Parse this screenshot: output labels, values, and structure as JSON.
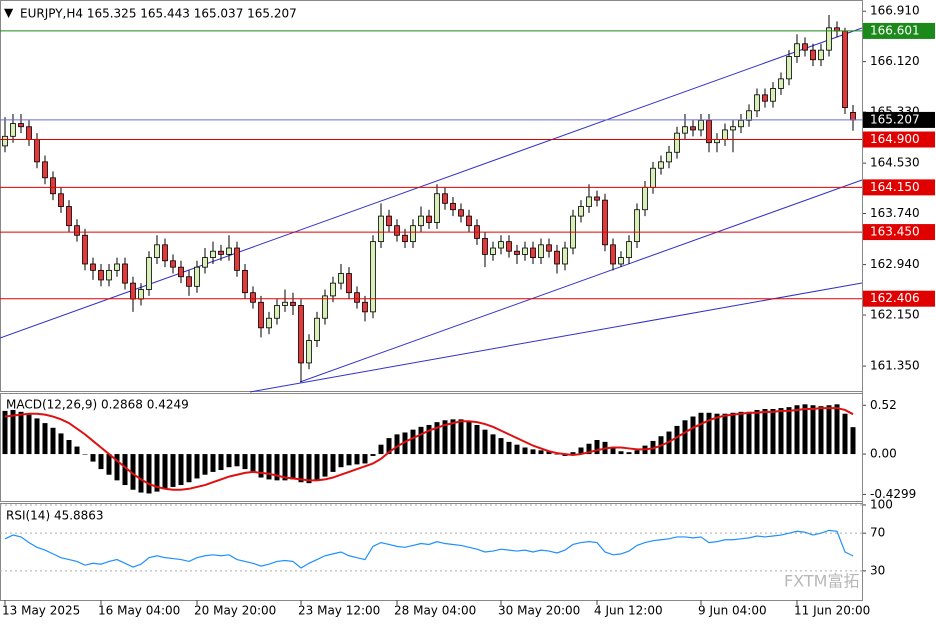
{
  "watermark": "FXTM富拓",
  "chart_data": [
    {
      "type": "candlestick",
      "title": "EURJPY,H4 165.325 165.443 165.037 165.207",
      "bull_color": "#d8efb8",
      "bear_color": "#e23a3a",
      "ylim": [
        160.96,
        167.07
      ],
      "yticks": [
        {
          "value": 166.91,
          "label": "166.910"
        },
        {
          "value": 166.12,
          "label": "166.120"
        },
        {
          "value": 165.33,
          "label": "165.330"
        },
        {
          "value": 164.53,
          "label": "164.530"
        },
        {
          "value": 163.74,
          "label": "163.740"
        },
        {
          "value": 162.94,
          "label": "162.940"
        },
        {
          "value": 162.15,
          "label": "162.150"
        },
        {
          "value": 161.35,
          "label": "161.350"
        }
      ],
      "xticks": [
        {
          "value": 0,
          "label": "13 May 2025"
        },
        {
          "value": 12,
          "label": "16 May 04:00"
        },
        {
          "value": 24,
          "label": "20 May 20:00"
        },
        {
          "value": 37,
          "label": "23 May 12:00"
        },
        {
          "value": 49,
          "label": "28 May 04:00"
        },
        {
          "value": 62,
          "label": "30 May 20:00"
        },
        {
          "value": 74,
          "label": "4 Jun 12:00"
        },
        {
          "value": 87,
          "label": "9 Jun 04:00"
        },
        {
          "value": 99,
          "label": "11 Jun 20:00"
        }
      ],
      "levels": [
        {
          "value": 166.601,
          "color": "#1b8a1b",
          "box_color": "#1b8a1b"
        },
        {
          "value": 165.207,
          "color": "#6a6ad8",
          "box_color": "#000000"
        },
        {
          "value": 164.9,
          "label": "164.900",
          "color": "#e00000",
          "box_color": "#e00000"
        },
        {
          "value": 164.15,
          "label": "164.150",
          "color": "#e00000",
          "box_color": "#e00000"
        },
        {
          "value": 163.45,
          "label": "163.450",
          "color": "#e00000",
          "box_color": "#e00000"
        },
        {
          "value": 162.406,
          "color": "#e00000",
          "box_color": "#e00000"
        }
      ],
      "ohlc": [
        [
          164.8,
          165.25,
          164.7,
          164.95
        ],
        [
          164.95,
          165.3,
          164.85,
          165.15
        ],
        [
          165.15,
          165.3,
          165.0,
          165.1
        ],
        [
          165.1,
          165.2,
          164.8,
          164.9
        ],
        [
          164.9,
          165.0,
          164.45,
          164.55
        ],
        [
          164.55,
          164.65,
          164.2,
          164.3
        ],
        [
          164.3,
          164.4,
          163.95,
          164.05
        ],
        [
          164.05,
          164.15,
          163.75,
          163.85
        ],
        [
          163.85,
          163.95,
          163.45,
          163.55
        ],
        [
          163.55,
          163.65,
          163.3,
          163.4
        ],
        [
          163.4,
          163.5,
          162.85,
          162.95
        ],
        [
          162.95,
          163.05,
          162.7,
          162.85
        ],
        [
          162.85,
          162.95,
          162.6,
          162.7
        ],
        [
          162.7,
          162.95,
          162.6,
          162.85
        ],
        [
          162.85,
          163.05,
          162.75,
          162.95
        ],
        [
          162.95,
          163.05,
          162.55,
          162.65
        ],
        [
          162.65,
          162.75,
          162.2,
          162.4
        ],
        [
          162.4,
          162.65,
          162.3,
          162.55
        ],
        [
          162.55,
          163.15,
          162.45,
          163.05
        ],
        [
          163.05,
          163.4,
          162.95,
          163.25
        ],
        [
          163.25,
          163.35,
          162.9,
          163.0
        ],
        [
          163.0,
          163.1,
          162.8,
          162.9
        ],
        [
          162.9,
          163.0,
          162.65,
          162.75
        ],
        [
          162.75,
          162.85,
          162.45,
          162.6
        ],
        [
          162.6,
          163.0,
          162.5,
          162.9
        ],
        [
          162.9,
          163.2,
          162.8,
          163.05
        ],
        [
          163.05,
          163.3,
          162.95,
          163.15
        ],
        [
          163.15,
          163.25,
          163.0,
          163.1
        ],
        [
          163.1,
          163.4,
          163.0,
          163.2
        ],
        [
          163.2,
          163.3,
          162.75,
          162.85
        ],
        [
          162.85,
          162.95,
          162.4,
          162.5
        ],
        [
          162.5,
          162.6,
          162.25,
          162.35
        ],
        [
          162.35,
          162.45,
          161.8,
          161.95
        ],
        [
          161.95,
          162.2,
          161.85,
          162.1
        ],
        [
          162.1,
          162.4,
          162.0,
          162.3
        ],
        [
          162.3,
          162.55,
          162.2,
          162.35
        ],
        [
          162.35,
          162.5,
          162.15,
          162.3
        ],
        [
          162.3,
          162.4,
          161.1,
          161.4
        ],
        [
          161.4,
          161.85,
          161.3,
          161.75
        ],
        [
          161.75,
          162.2,
          161.65,
          162.1
        ],
        [
          162.1,
          162.55,
          162.0,
          162.45
        ],
        [
          162.45,
          162.75,
          162.35,
          162.65
        ],
        [
          162.65,
          162.95,
          162.55,
          162.8
        ],
        [
          162.8,
          162.9,
          162.4,
          162.5
        ],
        [
          162.5,
          162.6,
          162.25,
          162.35
        ],
        [
          162.35,
          162.45,
          162.05,
          162.2
        ],
        [
          162.2,
          163.4,
          162.1,
          163.3
        ],
        [
          163.3,
          163.9,
          163.2,
          163.7
        ],
        [
          163.7,
          163.8,
          163.45,
          163.55
        ],
        [
          163.55,
          163.65,
          163.3,
          163.4
        ],
        [
          163.4,
          163.5,
          163.2,
          163.3
        ],
        [
          163.3,
          163.65,
          163.2,
          163.55
        ],
        [
          163.55,
          163.85,
          163.45,
          163.7
        ],
        [
          163.7,
          163.8,
          163.5,
          163.6
        ],
        [
          163.6,
          164.2,
          163.5,
          164.05
        ],
        [
          164.05,
          164.15,
          163.8,
          163.9
        ],
        [
          163.9,
          164.0,
          163.7,
          163.8
        ],
        [
          163.8,
          163.9,
          163.6,
          163.7
        ],
        [
          163.7,
          163.8,
          163.45,
          163.55
        ],
        [
          163.55,
          163.65,
          163.25,
          163.35
        ],
        [
          163.35,
          163.45,
          162.9,
          163.1
        ],
        [
          163.1,
          163.3,
          163.0,
          163.2
        ],
        [
          163.2,
          163.4,
          163.1,
          163.3
        ],
        [
          163.3,
          163.4,
          163.05,
          163.15
        ],
        [
          163.15,
          163.25,
          162.95,
          163.1
        ],
        [
          163.1,
          163.3,
          163.0,
          163.2
        ],
        [
          163.2,
          163.3,
          162.95,
          163.05
        ],
        [
          163.05,
          163.35,
          162.95,
          163.25
        ],
        [
          163.25,
          163.35,
          163.05,
          163.15
        ],
        [
          163.15,
          163.25,
          162.8,
          162.95
        ],
        [
          162.95,
          163.3,
          162.85,
          163.2
        ],
        [
          163.2,
          163.8,
          163.1,
          163.7
        ],
        [
          163.7,
          163.95,
          163.6,
          163.85
        ],
        [
          163.85,
          164.2,
          163.75,
          164.0
        ],
        [
          164.0,
          164.1,
          163.85,
          163.95
        ],
        [
          163.95,
          164.05,
          163.15,
          163.25
        ],
        [
          163.25,
          163.35,
          162.85,
          162.95
        ],
        [
          162.95,
          163.15,
          162.9,
          163.05
        ],
        [
          163.05,
          163.4,
          162.95,
          163.3
        ],
        [
          163.3,
          163.9,
          163.2,
          163.8
        ],
        [
          163.8,
          164.25,
          163.7,
          164.15
        ],
        [
          164.15,
          164.55,
          164.05,
          164.45
        ],
        [
          164.45,
          164.65,
          164.35,
          164.55
        ],
        [
          164.55,
          164.8,
          164.45,
          164.7
        ],
        [
          164.7,
          165.1,
          164.6,
          165.0
        ],
        [
          165.0,
          165.3,
          164.9,
          165.1
        ],
        [
          165.1,
          165.2,
          164.95,
          165.05
        ],
        [
          165.05,
          165.3,
          164.95,
          165.2
        ],
        [
          165.2,
          165.3,
          164.7,
          164.85
        ],
        [
          164.85,
          165.0,
          164.7,
          164.9
        ],
        [
          164.9,
          165.15,
          164.8,
          165.05
        ],
        [
          165.05,
          165.2,
          164.7,
          165.1
        ],
        [
          165.1,
          165.3,
          165.0,
          165.2
        ],
        [
          165.2,
          165.45,
          165.1,
          165.35
        ],
        [
          165.35,
          165.7,
          165.25,
          165.6
        ],
        [
          165.6,
          165.7,
          165.4,
          165.5
        ],
        [
          165.5,
          165.8,
          165.4,
          165.7
        ],
        [
          165.7,
          165.95,
          165.6,
          165.85
        ],
        [
          165.85,
          166.3,
          165.75,
          166.2
        ],
        [
          166.2,
          166.55,
          166.1,
          166.4
        ],
        [
          166.4,
          166.5,
          166.2,
          166.3
        ],
        [
          166.3,
          166.4,
          166.05,
          166.15
        ],
        [
          166.15,
          166.4,
          166.05,
          166.3
        ],
        [
          166.3,
          166.85,
          166.2,
          166.65
        ],
        [
          166.65,
          166.75,
          166.5,
          166.6
        ],
        [
          166.6,
          166.65,
          165.3,
          165.4
        ],
        [
          165.325,
          165.443,
          165.037,
          165.207
        ]
      ]
    },
    {
      "type": "macd",
      "title": "MACD(12,26,9) 0.2868 0.4249",
      "histogram_color": "#000000",
      "signal_color": "#e01010",
      "ylim": [
        -0.5,
        0.64
      ],
      "yticks": [
        0.52,
        {
          "value": 0,
          "label": "0.00"
        },
        -0.4299
      ],
      "histogram": [
        0.46,
        0.47,
        0.45,
        0.42,
        0.38,
        0.33,
        0.28,
        0.22,
        0.15,
        0.08,
        0.0,
        -0.08,
        -0.16,
        -0.22,
        -0.28,
        -0.33,
        -0.38,
        -0.41,
        -0.42,
        -0.4,
        -0.37,
        -0.35,
        -0.33,
        -0.3,
        -0.26,
        -0.22,
        -0.19,
        -0.17,
        -0.14,
        -0.13,
        -0.16,
        -0.2,
        -0.25,
        -0.27,
        -0.28,
        -0.28,
        -0.27,
        -0.3,
        -0.31,
        -0.28,
        -0.24,
        -0.19,
        -0.14,
        -0.12,
        -0.11,
        -0.1,
        -0.02,
        0.1,
        0.17,
        0.21,
        0.23,
        0.26,
        0.29,
        0.31,
        0.34,
        0.36,
        0.37,
        0.37,
        0.35,
        0.31,
        0.26,
        0.21,
        0.17,
        0.13,
        0.1,
        0.07,
        0.05,
        0.04,
        0.03,
        0.0,
        -0.02,
        0.02,
        0.07,
        0.11,
        0.15,
        0.13,
        0.07,
        0.03,
        0.02,
        0.04,
        0.09,
        0.14,
        0.19,
        0.24,
        0.3,
        0.36,
        0.4,
        0.44,
        0.44,
        0.43,
        0.43,
        0.44,
        0.45,
        0.45,
        0.47,
        0.48,
        0.48,
        0.49,
        0.5,
        0.52,
        0.53,
        0.52,
        0.51,
        0.52,
        0.53,
        0.43,
        0.2868
      ],
      "signal": [
        0.4,
        0.41,
        0.42,
        0.43,
        0.43,
        0.42,
        0.4,
        0.37,
        0.33,
        0.27,
        0.21,
        0.14,
        0.07,
        0.0,
        -0.07,
        -0.14,
        -0.21,
        -0.27,
        -0.32,
        -0.35,
        -0.37,
        -0.38,
        -0.38,
        -0.37,
        -0.35,
        -0.33,
        -0.3,
        -0.27,
        -0.24,
        -0.22,
        -0.2,
        -0.19,
        -0.2,
        -0.21,
        -0.23,
        -0.25,
        -0.26,
        -0.27,
        -0.28,
        -0.28,
        -0.27,
        -0.25,
        -0.22,
        -0.19,
        -0.16,
        -0.13,
        -0.1,
        -0.05,
        0.02,
        0.08,
        0.13,
        0.17,
        0.21,
        0.25,
        0.28,
        0.31,
        0.33,
        0.35,
        0.35,
        0.34,
        0.32,
        0.29,
        0.25,
        0.21,
        0.17,
        0.13,
        0.09,
        0.06,
        0.03,
        0.01,
        0.0,
        -0.01,
        0.0,
        0.02,
        0.04,
        0.06,
        0.07,
        0.07,
        0.06,
        0.05,
        0.05,
        0.06,
        0.09,
        0.13,
        0.18,
        0.23,
        0.28,
        0.32,
        0.36,
        0.39,
        0.41,
        0.42,
        0.43,
        0.44,
        0.44,
        0.45,
        0.45,
        0.46,
        0.46,
        0.47,
        0.48,
        0.48,
        0.49,
        0.49,
        0.49,
        0.47,
        0.4249
      ]
    },
    {
      "type": "rsi",
      "title": "RSI(14) 45.8863",
      "color": "#1e90ff",
      "grid": true,
      "ylim": [
        -1,
        101
      ],
      "yticks": [
        100,
        70,
        30
      ],
      "values": [
        64,
        68,
        66,
        60,
        55,
        52,
        48,
        44,
        42,
        40,
        36,
        38,
        37,
        40,
        42,
        38,
        34,
        37,
        44,
        46,
        44,
        43,
        42,
        40,
        44,
        46,
        47,
        46,
        47,
        42,
        40,
        38,
        35,
        37,
        40,
        41,
        40,
        33,
        38,
        42,
        46,
        48,
        50,
        46,
        44,
        42,
        56,
        60,
        58,
        56,
        55,
        57,
        59,
        58,
        61,
        59,
        58,
        57,
        55,
        53,
        50,
        51,
        53,
        52,
        51,
        52,
        50,
        52,
        51,
        49,
        52,
        58,
        60,
        61,
        60,
        50,
        47,
        48,
        51,
        57,
        60,
        62,
        63,
        64,
        66,
        66,
        65,
        66,
        60,
        61,
        63,
        63,
        64,
        65,
        67,
        66,
        67,
        68,
        70,
        72,
        71,
        68,
        70,
        73,
        72,
        50,
        45.8863
      ]
    }
  ]
}
